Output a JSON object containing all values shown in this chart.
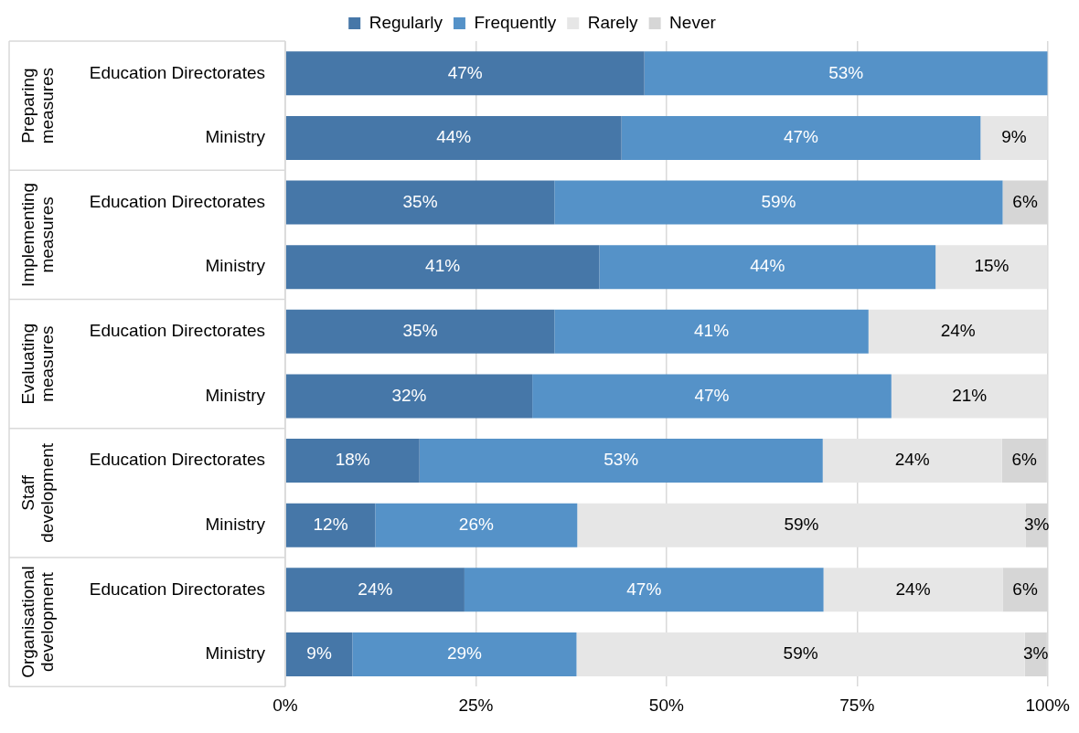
{
  "chart_data": {
    "type": "bar",
    "orientation": "horizontal",
    "stacked": true,
    "legend": "top",
    "grid": "x",
    "categories": [
      "Education Directorates",
      "Ministry",
      "Education Directorates",
      "Ministry",
      "Education Directorates",
      "Ministry",
      "Education Directorates",
      "Ministry",
      "Education Directorates",
      "Ministry"
    ],
    "annotations": [
      "Preparing measures",
      "Implementing measures",
      "Evaluating measures",
      "Staff development",
      "Organisational development"
    ],
    "xlim": [
      0,
      100
    ],
    "xticks": [
      {
        "value": 0,
        "label": "0%"
      },
      {
        "value": 25,
        "label": "25%"
      },
      {
        "value": 50,
        "label": "50%"
      },
      {
        "value": 75,
        "label": "75%"
      },
      {
        "value": 100,
        "label": "100%"
      }
    ],
    "series": [
      {
        "name": "Regularly",
        "color": "#4677a8",
        "values": [
          47.1,
          44.1,
          35.3,
          41.2,
          35.3,
          32.4,
          17.6,
          11.8,
          23.5,
          8.8
        ],
        "value_labels": [
          "47%",
          "44%",
          "35%",
          "41%",
          "35%",
          "32%",
          "18%",
          "12%",
          "24%",
          "9%"
        ]
      },
      {
        "name": "Frequently",
        "color": "#5592c8",
        "values": [
          52.9,
          47.1,
          58.8,
          44.1,
          41.2,
          47.1,
          52.9,
          26.5,
          47.1,
          29.4
        ],
        "value_labels": [
          "53%",
          "47%",
          "59%",
          "44%",
          "41%",
          "47%",
          "53%",
          "26%",
          "47%",
          "29%"
        ]
      },
      {
        "name": "Rarely",
        "color": "#e6e6e6",
        "values": [
          null,
          8.8,
          null,
          14.7,
          23.5,
          20.5,
          23.5,
          58.8,
          23.5,
          58.8
        ],
        "value_labels": [
          null,
          "9%",
          null,
          "15%",
          "24%",
          "21%",
          "24%",
          "59%",
          "24%",
          "59%"
        ]
      },
      {
        "name": "Never",
        "color": "#d6d6d6",
        "values": [
          null,
          null,
          5.9,
          null,
          null,
          null,
          5.9,
          2.9,
          5.9,
          2.9
        ],
        "value_labels": [
          null,
          null,
          "6%",
          null,
          null,
          null,
          "6%",
          "3%",
          "6%",
          "3%"
        ]
      }
    ]
  }
}
